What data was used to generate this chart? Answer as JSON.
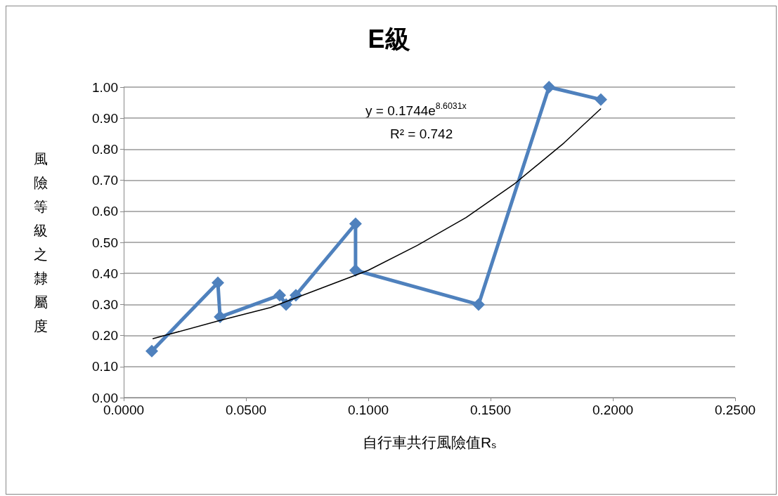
{
  "chart_data": {
    "type": "line",
    "title": "E級",
    "xlabel": "自行車共行風險值R$_{s}$",
    "ylabel": "風險等級之隸屬度",
    "xlim": [
      0,
      0.25
    ],
    "xticks": [
      {
        "value": 0,
        "label": "0.0000"
      },
      {
        "value": 0.05,
        "label": "0.0500"
      },
      {
        "value": 0.1,
        "label": "0.1000"
      },
      {
        "value": 0.15,
        "label": "0.1500"
      },
      {
        "value": 0.2,
        "label": "0.2000"
      },
      {
        "value": 0.25,
        "label": "0.2500"
      }
    ],
    "ylim": [
      0,
      1
    ],
    "yticks": [
      {
        "value": 0,
        "label": "0.00"
      },
      {
        "value": 0.1,
        "label": "0.10"
      },
      {
        "value": 0.2,
        "label": "0.20"
      },
      {
        "value": 0.3,
        "label": "0.30"
      },
      {
        "value": 0.4,
        "label": "0.40"
      },
      {
        "value": 0.5,
        "label": "0.50"
      },
      {
        "value": 0.6,
        "label": "0.60"
      },
      {
        "value": 0.7,
        "label": "0.70"
      },
      {
        "value": 0.8,
        "label": "0.80"
      },
      {
        "value": 0.9,
        "label": "0.90"
      },
      {
        "value": 1,
        "label": "1.00"
      }
    ],
    "grid": "y",
    "series": [
      {
        "color": "#4f81bd",
        "marker": "diamond",
        "line_style": "solid",
        "x": [
          0.0115,
          0.0385,
          0.0394,
          0.0638,
          0.0664,
          0.0704,
          0.0948,
          0.0948,
          0.1451,
          0.1739,
          0.1951
        ],
        "values": [
          0.15,
          0.37,
          0.26,
          0.33,
          0.3,
          0.33,
          0.56,
          0.41,
          0.3,
          1.0,
          0.96
        ]
      },
      {
        "type": "line",
        "color": "#000000",
        "marker": "none",
        "line_style": "solid",
        "x": [
          0.012,
          0.04,
          0.06,
          0.08,
          0.1,
          0.12,
          0.14,
          0.16,
          0.18,
          0.195
        ],
        "values": [
          0.19,
          0.25,
          0.29,
          0.35,
          0.41,
          0.49,
          0.58,
          0.69,
          0.82,
          0.93
        ]
      }
    ],
    "annotations": [
      "y = 0.1744e$^{8.6031x}$",
      "R² = 0.742"
    ]
  }
}
